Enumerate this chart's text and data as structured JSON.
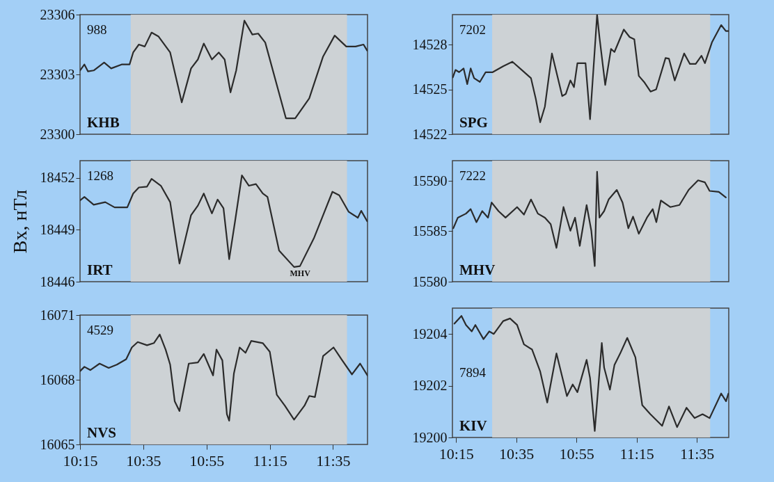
{
  "chart_data": [
    {
      "type": "line",
      "annotations": [
        "988",
        "KHB"
      ],
      "xlim": [
        10.25,
        11.765
      ],
      "ylim": [
        23300,
        23306
      ],
      "yticks": [
        23300,
        23303,
        23306
      ],
      "tick_labels": "y",
      "bands": [
        {
          "axis": "x",
          "from": 10.517,
          "to": 11.657,
          "color": "#d2d2d2"
        }
      ],
      "series": [
        {
          "color": "#2b2b2b",
          "x": [
            10.25,
            10.273,
            10.292,
            10.322,
            10.377,
            10.414,
            10.469,
            10.511,
            10.53,
            10.56,
            10.591,
            10.627,
            10.664,
            10.725,
            10.786,
            10.835,
            10.871,
            10.902,
            10.945,
            10.981,
            11.012,
            11.043,
            11.073,
            11.116,
            11.158,
            11.189,
            11.226,
            11.335,
            11.384,
            11.458,
            11.531,
            11.592,
            11.653,
            11.702,
            11.744,
            11.763
          ],
          "values": [
            23303.2,
            23303.5,
            23303.15,
            23303.2,
            23303.6,
            23303.3,
            23303.5,
            23303.5,
            23304.1,
            23304.5,
            23304.4,
            23305.1,
            23304.9,
            23304.1,
            23301.6,
            23303.3,
            23303.75,
            23304.55,
            23303.75,
            23304.1,
            23303.75,
            23302.1,
            23303.2,
            23305.7,
            23305.0,
            23305.05,
            23304.6,
            23300.8,
            23300.8,
            23301.8,
            23303.9,
            23304.95,
            23304.4,
            23304.4,
            23304.5,
            23304.2
          ]
        }
      ]
    },
    {
      "type": "line",
      "ylabel": "Bx, нТл",
      "annotations": [
        "1268",
        "IRT",
        "MHV"
      ],
      "xlim": [
        10.25,
        11.765
      ],
      "ylim": [
        18446,
        18453
      ],
      "yticks": [
        18446,
        18449,
        18452
      ],
      "tick_labels": "y",
      "bands": [
        {
          "axis": "x",
          "from": 10.517,
          "to": 11.657,
          "color": "#d2d2d2"
        }
      ],
      "series": [
        {
          "color": "#2b2b2b",
          "x": [
            10.25,
            10.273,
            10.322,
            10.383,
            10.432,
            10.499,
            10.53,
            10.56,
            10.603,
            10.627,
            10.676,
            10.725,
            10.774,
            10.835,
            10.871,
            10.902,
            10.945,
            10.975,
            11.006,
            11.036,
            11.067,
            11.103,
            11.14,
            11.177,
            11.213,
            11.238,
            11.299,
            11.378,
            11.409,
            11.482,
            11.531,
            11.58,
            11.616,
            11.665,
            11.714,
            11.732,
            11.763
          ],
          "values": [
            18450.7,
            18450.9,
            18450.45,
            18450.6,
            18450.3,
            18450.3,
            18451.1,
            18451.45,
            18451.5,
            18451.95,
            18451.55,
            18450.6,
            18447.05,
            18449.85,
            18450.4,
            18451.1,
            18449.95,
            18450.75,
            18450.25,
            18447.3,
            18449.5,
            18452.15,
            18451.55,
            18451.65,
            18451.1,
            18450.9,
            18447.8,
            18446.85,
            18446.9,
            18448.5,
            18449.85,
            18451.2,
            18451.0,
            18450.05,
            18449.7,
            18450.1,
            18449.5
          ]
        }
      ]
    },
    {
      "type": "line",
      "annotations": [
        "4529",
        "NVS"
      ],
      "xlim": [
        10.25,
        11.765
      ],
      "ylim": [
        16065,
        16071
      ],
      "yticks": [
        16065,
        16068,
        16071
      ],
      "xticks": [
        {
          "value": 10.25,
          "label": "10:15"
        },
        {
          "value": 10.5833,
          "label": "10:35"
        },
        {
          "value": 10.9167,
          "label": "10:55"
        },
        {
          "value": 11.25,
          "label": "11:15"
        },
        {
          "value": 11.5833,
          "label": "11:35"
        }
      ],
      "bands": [
        {
          "axis": "x",
          "from": 10.517,
          "to": 11.657,
          "color": "#d2d2d2"
        }
      ],
      "series": [
        {
          "color": "#2b2b2b",
          "x": [
            10.25,
            10.273,
            10.304,
            10.353,
            10.401,
            10.444,
            10.493,
            10.523,
            10.554,
            10.603,
            10.639,
            10.67,
            10.701,
            10.725,
            10.749,
            10.774,
            10.823,
            10.871,
            10.902,
            10.951,
            10.969,
            11.0,
            11.024,
            11.036,
            11.061,
            11.091,
            11.122,
            11.152,
            11.213,
            11.25,
            11.287,
            11.329,
            11.378,
            11.433,
            11.458,
            11.488,
            11.531,
            11.586,
            11.628,
            11.683,
            11.726,
            11.765
          ],
          "values": [
            16068.4,
            16068.6,
            16068.45,
            16068.75,
            16068.55,
            16068.7,
            16068.95,
            16069.5,
            16069.75,
            16069.6,
            16069.7,
            16070.1,
            16069.4,
            16068.7,
            16067.0,
            16066.55,
            16068.75,
            16068.8,
            16069.2,
            16068.2,
            16069.4,
            16068.9,
            16066.4,
            16066.1,
            16068.3,
            16069.5,
            16069.25,
            16069.8,
            16069.7,
            16069.3,
            16067.3,
            16066.8,
            16066.15,
            16066.8,
            16067.25,
            16067.2,
            16069.1,
            16069.5,
            16068.95,
            16068.25,
            16068.75,
            16068.2
          ]
        }
      ]
    },
    {
      "type": "line",
      "annotations": [
        "7202",
        "SPG"
      ],
      "xlim": [
        10.23,
        11.76
      ],
      "ylim": [
        14522,
        14530
      ],
      "yticks": [
        14522,
        14525,
        14528
      ],
      "tick_labels": "y",
      "bands": [
        {
          "axis": "x",
          "from": 10.45,
          "to": 11.657,
          "color": "#d2d2d2"
        }
      ],
      "series": [
        {
          "color": "#2b2b2b",
          "x": [
            10.232,
            10.247,
            10.267,
            10.292,
            10.312,
            10.331,
            10.35,
            10.382,
            10.414,
            10.453,
            10.511,
            10.562,
            10.614,
            10.665,
            10.691,
            10.716,
            10.742,
            10.781,
            10.838,
            10.858,
            10.883,
            10.903,
            10.922,
            10.967,
            10.992,
            11.018,
            11.031,
            11.044,
            11.076,
            11.108,
            11.127,
            11.179,
            11.211,
            11.237,
            11.262,
            11.294,
            11.327,
            11.358,
            11.41,
            11.429,
            11.461,
            11.513,
            11.545,
            11.577,
            11.609,
            11.628,
            11.667,
            11.718,
            11.744,
            11.757
          ],
          "values": [
            14525.8,
            14526.3,
            14526.15,
            14526.4,
            14525.35,
            14526.4,
            14525.75,
            14525.5,
            14526.15,
            14526.15,
            14526.55,
            14526.85,
            14526.3,
            14525.75,
            14524.4,
            14522.8,
            14523.85,
            14527.4,
            14524.55,
            14524.7,
            14525.6,
            14525.15,
            14526.75,
            14526.75,
            14523.0,
            14527.65,
            14530.0,
            14528.5,
            14525.3,
            14527.7,
            14527.5,
            14529.0,
            14528.5,
            14528.35,
            14525.9,
            14525.45,
            14524.85,
            14525.0,
            14527.1,
            14527.05,
            14525.6,
            14527.4,
            14526.7,
            14526.7,
            14527.25,
            14526.75,
            14528.15,
            14529.3,
            14528.9,
            14528.9
          ]
        }
      ]
    },
    {
      "type": "line",
      "annotations": [
        "7222",
        "MHV"
      ],
      "xlim": [
        10.23,
        11.76
      ],
      "ylim": [
        15580,
        15592
      ],
      "yticks": [
        15580,
        15585,
        15590
      ],
      "tick_labels": "y",
      "bands": [
        {
          "axis": "x",
          "from": 10.45,
          "to": 11.657,
          "color": "#d2d2d2"
        }
      ],
      "series": [
        {
          "color": "#2b2b2b",
          "x": [
            10.235,
            10.26,
            10.305,
            10.331,
            10.363,
            10.395,
            10.427,
            10.447,
            10.485,
            10.524,
            10.588,
            10.626,
            10.665,
            10.703,
            10.742,
            10.774,
            10.806,
            10.845,
            10.883,
            10.909,
            10.935,
            10.973,
            10.999,
            11.018,
            11.031,
            11.044,
            11.07,
            11.095,
            11.14,
            11.172,
            11.204,
            11.23,
            11.262,
            11.307,
            11.339,
            11.359,
            11.384,
            11.436,
            11.487,
            11.538,
            11.59,
            11.628,
            11.654,
            11.705,
            11.744
          ],
          "values": [
            15585.3,
            15586.35,
            15586.75,
            15587.2,
            15585.9,
            15587.0,
            15586.35,
            15587.85,
            15587.0,
            15586.35,
            15587.4,
            15586.65,
            15588.15,
            15586.75,
            15586.35,
            15585.7,
            15583.35,
            15587.4,
            15585.05,
            15586.35,
            15583.55,
            15587.6,
            15585.05,
            15581.55,
            15590.9,
            15586.35,
            15587.0,
            15588.15,
            15589.1,
            15587.85,
            15585.3,
            15586.45,
            15584.75,
            15586.35,
            15587.2,
            15585.9,
            15588.05,
            15587.4,
            15587.6,
            15589.1,
            15590.05,
            15589.85,
            15589.0,
            15588.9,
            15588.35
          ]
        }
      ]
    },
    {
      "type": "line",
      "annotations": [
        "7894",
        "KIV"
      ],
      "xlim": [
        10.23,
        11.76
      ],
      "ylim": [
        19200,
        19205
      ],
      "yticks": [
        19200,
        19202,
        19204
      ],
      "xticks": [
        {
          "value": 10.25,
          "label": "10:15"
        },
        {
          "value": 10.5833,
          "label": "10:35"
        },
        {
          "value": 10.9167,
          "label": "10:55"
        },
        {
          "value": 11.25,
          "label": "11:15"
        },
        {
          "value": 11.5833,
          "label": "11:35"
        }
      ],
      "bands": [
        {
          "axis": "x",
          "from": 10.45,
          "to": 11.657,
          "color": "#d2d2d2"
        }
      ],
      "series": [
        {
          "color": "#2b2b2b",
          "x": [
            10.241,
            10.28,
            10.305,
            10.337,
            10.357,
            10.402,
            10.434,
            10.459,
            10.511,
            10.549,
            10.588,
            10.626,
            10.671,
            10.716,
            10.755,
            10.806,
            10.864,
            10.896,
            10.922,
            10.973,
            10.992,
            11.018,
            11.057,
            11.07,
            11.102,
            11.127,
            11.159,
            11.198,
            11.243,
            11.281,
            11.326,
            11.391,
            11.429,
            11.474,
            11.526,
            11.571,
            11.615,
            11.654,
            11.718,
            11.745,
            11.758
          ],
          "values": [
            19204.4,
            19204.7,
            19204.35,
            19204.1,
            19204.35,
            19203.8,
            19204.1,
            19204.0,
            19204.5,
            19204.6,
            19204.35,
            19203.6,
            19203.4,
            19202.55,
            19201.35,
            19203.25,
            19201.6,
            19202.05,
            19201.75,
            19203.0,
            19202.3,
            19200.25,
            19203.65,
            19202.7,
            19201.85,
            19202.8,
            19203.25,
            19203.85,
            19203.1,
            19201.25,
            19200.9,
            19200.45,
            19201.2,
            19200.4,
            19201.15,
            19200.75,
            19200.9,
            19200.75,
            19201.7,
            19201.4,
            19201.7
          ]
        }
      ]
    }
  ]
}
